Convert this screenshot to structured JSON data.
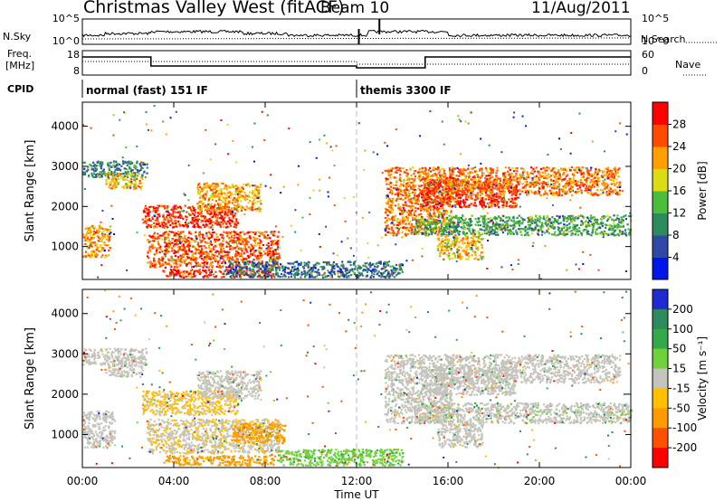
{
  "header": {
    "title": "Christmas Valley West (fitACF)",
    "beam": "Beam 10",
    "date": "11/Aug/2011"
  },
  "noise_panel": {
    "left_label": "N.Sky",
    "right_label": "N.Search",
    "left_ticks": [
      "10^5",
      "10^0"
    ],
    "right_ticks": [
      "10^5",
      "10^0"
    ]
  },
  "freq_panel": {
    "left_label_top": "Freq.",
    "left_label_bottom": "[MHz]",
    "right_label": "Nave",
    "left_ticks": [
      "18",
      "8"
    ],
    "right_ticks": [
      "60",
      "0"
    ]
  },
  "cpid_panel": {
    "label": "CPID",
    "segments": [
      {
        "label": "normal (fast) 151 IF",
        "start_hour": 0,
        "end_hour": 12
      },
      {
        "label": "themis 3300 IF",
        "start_hour": 12,
        "end_hour": 24
      }
    ]
  },
  "power_colorbar": {
    "label": "Power [dB]",
    "ticks": [
      "4",
      "8",
      "12",
      "16",
      "20",
      "24",
      "28"
    ],
    "colors": [
      "#0016e8",
      "#2f49a5",
      "#2d8a5c",
      "#4cbc3d",
      "#dcdc14",
      "#ffa000",
      "#ff4a00",
      "#ff0000"
    ]
  },
  "velocity_colorbar": {
    "label": "Velocity [m s⁻¹]",
    "ticks": [
      "200",
      "100",
      "50",
      "15",
      "-15",
      "-50",
      "-100",
      "-200"
    ],
    "colors": [
      "#1f2ad0",
      "#2d8a5c",
      "#35a84e",
      "#6fd23a",
      "#c4c4bc",
      "#ffc000",
      "#ff9a00",
      "#ff5000",
      "#ff0000"
    ]
  },
  "chart_data": [
    {
      "type": "heatmap",
      "name": "power",
      "ylabel": "Slant Range [km]",
      "yticks": [
        1000,
        2000,
        3000,
        4000
      ],
      "ylim": [
        180,
        4600
      ],
      "xlim": [
        0,
        24
      ],
      "xticks": [
        "00:00",
        "04:00",
        "08:00",
        "12:00",
        "16:00",
        "20:00",
        "00:00"
      ],
      "regions": [
        {
          "t": [
            0.0,
            1.2
          ],
          "r": [
            750,
            1550
          ],
          "value": 22
        },
        {
          "t": [
            0.0,
            2.8
          ],
          "r": [
            2750,
            3150
          ],
          "value": 10
        },
        {
          "t": [
            1.0,
            2.6
          ],
          "r": [
            2450,
            2850
          ],
          "value": 20
        },
        {
          "t": [
            2.6,
            6.8
          ],
          "r": [
            1500,
            2050
          ],
          "value": 28
        },
        {
          "t": [
            2.8,
            8.6
          ],
          "r": [
            500,
            1400
          ],
          "value": 26
        },
        {
          "t": [
            5.0,
            7.8
          ],
          "r": [
            1900,
            2600
          ],
          "value": 22
        },
        {
          "t": [
            3.5,
            8.4
          ],
          "r": [
            250,
            450
          ],
          "value": 28
        },
        {
          "t": [
            6.2,
            14.0
          ],
          "r": [
            250,
            650
          ],
          "value": 8
        },
        {
          "t": [
            13.2,
            16.2
          ],
          "r": [
            1300,
            3000
          ],
          "value": 24
        },
        {
          "t": [
            14.8,
            19.0
          ],
          "r": [
            2000,
            2700
          ],
          "value": 28
        },
        {
          "t": [
            16.0,
            23.5
          ],
          "r": [
            2300,
            3000
          ],
          "value": 24
        },
        {
          "t": [
            14.5,
            24.0
          ],
          "r": [
            1300,
            1800
          ],
          "value": 12
        },
        {
          "t": [
            15.5,
            17.5
          ],
          "r": [
            700,
            1300
          ],
          "value": 20
        }
      ]
    },
    {
      "type": "heatmap",
      "name": "velocity",
      "ylabel": "Slant Range [km]",
      "yticks": [
        1000,
        2000,
        3000,
        4000
      ],
      "ylim": [
        180,
        4600
      ],
      "xlim": [
        0,
        24
      ],
      "xticks": [
        "00:00",
        "04:00",
        "08:00",
        "12:00",
        "16:00",
        "20:00",
        "00:00"
      ],
      "xlabel": "Time UT",
      "regions": [
        {
          "t": [
            0.0,
            1.4
          ],
          "r": [
            700,
            1600
          ],
          "value": 0
        },
        {
          "t": [
            0.0,
            2.8
          ],
          "r": [
            2750,
            3150
          ],
          "value": 0
        },
        {
          "t": [
            1.0,
            2.6
          ],
          "r": [
            2450,
            2850
          ],
          "value": 0
        },
        {
          "t": [
            2.6,
            6.8
          ],
          "r": [
            1500,
            2100
          ],
          "value": -20
        },
        {
          "t": [
            2.8,
            8.6
          ],
          "r": [
            550,
            1400
          ],
          "value": -10
        },
        {
          "t": [
            5.0,
            7.8
          ],
          "r": [
            1900,
            2600
          ],
          "value": 0
        },
        {
          "t": [
            6.5,
            8.8
          ],
          "r": [
            800,
            1300
          ],
          "value": -60
        },
        {
          "t": [
            3.5,
            8.4
          ],
          "r": [
            250,
            500
          ],
          "value": -60
        },
        {
          "t": [
            8.5,
            14.0
          ],
          "r": [
            250,
            650
          ],
          "value": 40
        },
        {
          "t": [
            13.2,
            16.2
          ],
          "r": [
            1300,
            3000
          ],
          "value": 0
        },
        {
          "t": [
            14.8,
            19.0
          ],
          "r": [
            2000,
            2700
          ],
          "value": 0
        },
        {
          "t": [
            16.0,
            23.5
          ],
          "r": [
            2300,
            3000
          ],
          "value": 0
        },
        {
          "t": [
            14.5,
            24.0
          ],
          "r": [
            1300,
            1800
          ],
          "value": 5
        },
        {
          "t": [
            15.5,
            17.5
          ],
          "r": [
            700,
            1300
          ],
          "value": 0
        }
      ]
    }
  ]
}
